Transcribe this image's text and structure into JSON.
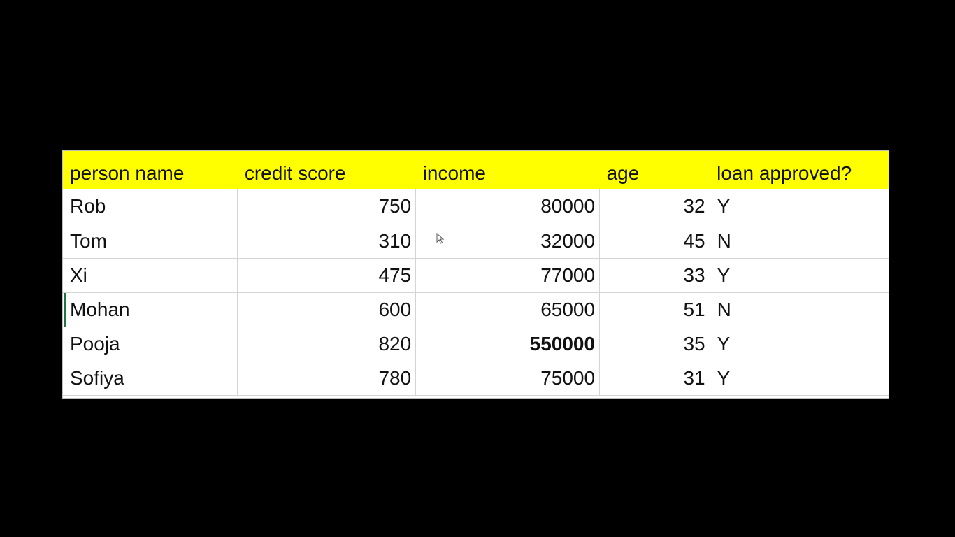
{
  "table": {
    "headers": [
      "person name",
      "credit score",
      "income",
      "age",
      "loan approved?"
    ],
    "rows": [
      {
        "name": "Rob",
        "credit_score": "750",
        "income": "80000",
        "age": "32",
        "loan_approved": "Y"
      },
      {
        "name": "Tom",
        "credit_score": "310",
        "income": "32000",
        "age": "45",
        "loan_approved": "N"
      },
      {
        "name": "Xi",
        "credit_score": "475",
        "income": "77000",
        "age": "33",
        "loan_approved": "Y"
      },
      {
        "name": "Mohan",
        "credit_score": "600",
        "income": "65000",
        "age": "51",
        "loan_approved": "N"
      },
      {
        "name": "Pooja",
        "credit_score": "820",
        "income": "550000",
        "age": "35",
        "loan_approved": "Y"
      },
      {
        "name": "Sofiya",
        "credit_score": "780",
        "income": "75000",
        "age": "31",
        "loan_approved": "Y"
      }
    ]
  },
  "colors": {
    "header_fill": "#ffff00",
    "background": "#000000",
    "selection_marker": "#217346"
  },
  "icons": {
    "cursor": "mouse-pointer-icon"
  }
}
